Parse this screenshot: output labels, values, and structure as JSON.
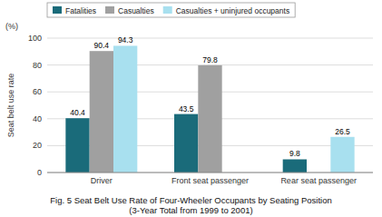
{
  "chart_data": {
    "type": "bar",
    "title": "Fig. 5 Seat Belt Use Rate of Four-Wheeler Occupants by Seating Position",
    "subtitle": "(3-Year Total from 1999 to 2001)",
    "y_label": "Seat belt use rate",
    "annotations": [
      "(%)"
    ],
    "categories": [
      "Driver",
      "Front seat passenger",
      "Rear seat passenger"
    ],
    "series": [
      {
        "name": "Fatalities",
        "color": "#1a6b7a",
        "values": [
          40.4,
          43.5,
          9.8
        ]
      },
      {
        "name": "Casualties",
        "color": "#a0a0a0",
        "values": [
          90.4,
          79.8,
          null
        ]
      },
      {
        "name": "Casualties + uninjured occupants",
        "color": "#a8e0ef",
        "values": [
          94.3,
          null,
          26.5
        ]
      }
    ],
    "ylim": [
      0,
      100
    ],
    "yticks": [
      0,
      20,
      40,
      60,
      80,
      100
    ],
    "grid": true,
    "legend": "top",
    "data_labels": true
  }
}
